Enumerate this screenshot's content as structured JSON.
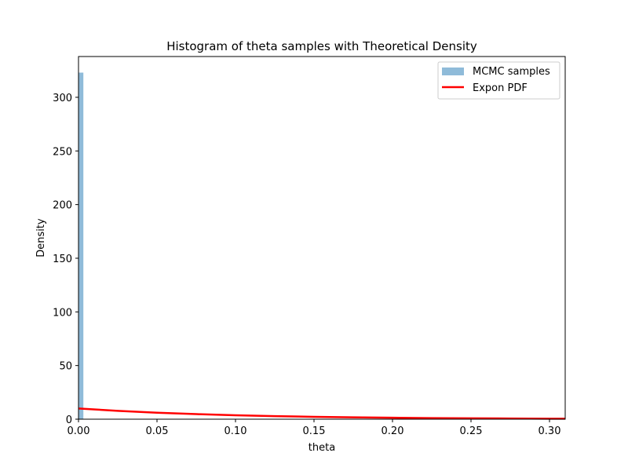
{
  "chart_data": {
    "type": "bar",
    "title": "Histogram of theta samples with Theoretical Density",
    "xlabel": "theta",
    "ylabel": "Density",
    "xlim": [
      0,
      0.31
    ],
    "ylim": [
      0,
      338
    ],
    "xticks": [
      "0.00",
      "0.05",
      "0.10",
      "0.15",
      "0.20",
      "0.25",
      "0.30"
    ],
    "xtick_values": [
      0,
      0.05,
      0.1,
      0.15,
      0.2,
      0.25,
      0.3
    ],
    "yticks": [
      "0",
      "50",
      "100",
      "150",
      "200",
      "250",
      "300"
    ],
    "ytick_values": [
      0,
      50,
      100,
      150,
      200,
      250,
      300
    ],
    "grid": false,
    "legend_position": "top-right",
    "series": [
      {
        "name": "MCMC samples",
        "kind": "histogram",
        "color": "#1f77b4",
        "opacity": 0.5,
        "bins": [
          {
            "x0": 0.0,
            "x1": 0.0031,
            "value": 323
          }
        ]
      },
      {
        "name": "Expon PDF",
        "kind": "line",
        "color": "#ff0000",
        "points": [
          {
            "x": 0.0,
            "y": 10.0
          },
          {
            "x": 0.025,
            "y": 7.79
          },
          {
            "x": 0.05,
            "y": 6.07
          },
          {
            "x": 0.075,
            "y": 4.72
          },
          {
            "x": 0.1,
            "y": 3.68
          },
          {
            "x": 0.125,
            "y": 2.87
          },
          {
            "x": 0.15,
            "y": 2.23
          },
          {
            "x": 0.175,
            "y": 1.74
          },
          {
            "x": 0.2,
            "y": 1.35
          },
          {
            "x": 0.225,
            "y": 1.05
          },
          {
            "x": 0.25,
            "y": 0.82
          },
          {
            "x": 0.275,
            "y": 0.64
          },
          {
            "x": 0.3,
            "y": 0.5
          },
          {
            "x": 0.31,
            "y": 0.45
          }
        ]
      }
    ]
  }
}
